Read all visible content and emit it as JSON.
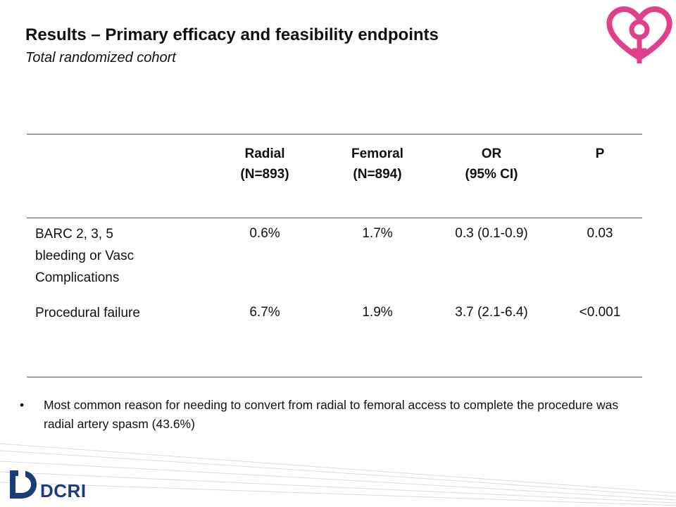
{
  "slide": {
    "title": "Results – Primary efficacy and feasibility endpoints",
    "subtitle": "Total randomized cohort"
  },
  "table": {
    "headers": [
      {
        "line1": "Radial",
        "line2": "(N=893)"
      },
      {
        "line1": "Femoral",
        "line2": "(N=894)"
      },
      {
        "line1": "OR",
        "line2": "(95% CI)"
      },
      {
        "line1": "P",
        "line2": ""
      }
    ],
    "rows": [
      {
        "label_lines": [
          "BARC 2, 3, 5",
          "bleeding or Vasc",
          "Complications"
        ],
        "values": [
          "0.6%",
          "1.7%",
          "0.3 (0.1-0.9)",
          "0.03"
        ]
      },
      {
        "label_lines": [
          "Procedural failure"
        ],
        "values": [
          "6.7%",
          "1.9%",
          "3.7 (2.1-6.4)",
          "<0.001"
        ]
      }
    ]
  },
  "bullet": {
    "marker": "•",
    "text": "Most common reason for needing to convert from radial to femoral access to complete the procedure was radial artery spasm (43.6%)"
  },
  "footer": {
    "logo_text": "DCRI"
  },
  "colors": {
    "logo_pink": "#e0408a",
    "dcri_blue": "#1a3d7a",
    "rule": "#555555"
  }
}
